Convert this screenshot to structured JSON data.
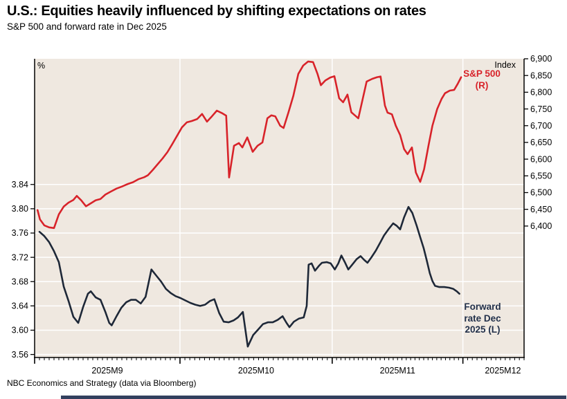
{
  "header": {
    "title": "U.S.: Equities heavily influenced by shifting expectations on rates",
    "subtitle": "S&P 500 and forward rate in Dec 2025"
  },
  "source": "NBC Economics and Strategy (data via Bloomberg)",
  "labels": {
    "left_axis_unit": "%",
    "right_axis_unit": "Index"
  },
  "legends": {
    "sp500": [
      "S&P 500",
      "(R)"
    ],
    "forward": [
      "Forward",
      "rate Dec",
      "2025 (L)"
    ]
  },
  "chart_data": {
    "type": "line",
    "title": "U.S.: Equities heavily influenced by shifting expectations on rates",
    "subtitle": "S&P 500 and forward rate in Dec 2025",
    "ylabel_left": "%",
    "ylabel_right": "Index",
    "grid": true,
    "plot_background": "#efe8e0",
    "gridline_color": "#ffffff",
    "ylim_left": [
      3.555,
      4.047
    ],
    "ylim_right": [
      6007,
      6900
    ],
    "left_ticks": [
      {
        "v": 3.84,
        "label": "3.84"
      },
      {
        "v": 3.8,
        "label": "3.80"
      },
      {
        "v": 3.76,
        "label": "3.76"
      },
      {
        "v": 3.72,
        "label": "3.72"
      },
      {
        "v": 3.68,
        "label": "3.68"
      },
      {
        "v": 3.64,
        "label": "3.64"
      },
      {
        "v": 3.6,
        "label": "3.60"
      },
      {
        "v": 3.56,
        "label": "3.56"
      }
    ],
    "right_ticks": [
      {
        "v": 6900,
        "label": "6,900"
      },
      {
        "v": 6850,
        "label": "6,850"
      },
      {
        "v": 6800,
        "label": "6,800"
      },
      {
        "v": 6750,
        "label": "6,750"
      },
      {
        "v": 6700,
        "label": "6,700"
      },
      {
        "v": 6650,
        "label": "6,650"
      },
      {
        "v": 6600,
        "label": "6,600"
      },
      {
        "v": 6550,
        "label": "6,550"
      },
      {
        "v": 6500,
        "label": "6,500"
      },
      {
        "v": 6450,
        "label": "6,450"
      },
      {
        "v": 6400,
        "label": "6,400"
      }
    ],
    "x_axis": {
      "unit": "days since 2025-09-01",
      "domain": [
        0,
        104
      ],
      "month_boundaries_day": [
        0,
        30,
        61,
        91
      ],
      "minor_tick_every_day": 1,
      "months": [
        {
          "label": "2025M9",
          "center_day": 15
        },
        {
          "label": "2025M10",
          "center_day": 45.5
        },
        {
          "label": "2025M11",
          "center_day": 76
        },
        {
          "label": "2025M12",
          "center_day": 99.5
        }
      ]
    },
    "series": [
      {
        "name": "S&P 500 (R)",
        "axis": "right",
        "color": "#d8232a",
        "width": 2.6,
        "points": [
          [
            0.6,
            6448
          ],
          [
            1.1,
            6420
          ],
          [
            2,
            6402
          ],
          [
            3,
            6396
          ],
          [
            4,
            6394
          ],
          [
            5,
            6435
          ],
          [
            6,
            6458
          ],
          [
            7,
            6470
          ],
          [
            8,
            6478
          ],
          [
            8.7,
            6490
          ],
          [
            9.6,
            6477
          ],
          [
            10.6,
            6459
          ],
          [
            11.6,
            6468
          ],
          [
            12.6,
            6477
          ],
          [
            13.6,
            6481
          ],
          [
            14.6,
            6494
          ],
          [
            15.7,
            6503
          ],
          [
            16.9,
            6512
          ],
          [
            18,
            6518
          ],
          [
            19.1,
            6525
          ],
          [
            20.3,
            6531
          ],
          [
            21.4,
            6540
          ],
          [
            22.6,
            6546
          ],
          [
            23.4,
            6552
          ],
          [
            24.4,
            6568
          ],
          [
            25.4,
            6585
          ],
          [
            26.4,
            6602
          ],
          [
            27.4,
            6621
          ],
          [
            28.4,
            6645
          ],
          [
            29.4,
            6670
          ],
          [
            30.4,
            6695
          ],
          [
            31.4,
            6710
          ],
          [
            32.4,
            6714
          ],
          [
            33.5,
            6720
          ],
          [
            34.5,
            6735
          ],
          [
            35.5,
            6712
          ],
          [
            36.5,
            6728
          ],
          [
            37.5,
            6745
          ],
          [
            38.5,
            6738
          ],
          [
            39.4,
            6730
          ],
          [
            40,
            6545
          ],
          [
            41,
            6640
          ],
          [
            42,
            6648
          ],
          [
            42.7,
            6635
          ],
          [
            43.7,
            6665
          ],
          [
            44.8,
            6622
          ],
          [
            45.8,
            6640
          ],
          [
            46.8,
            6650
          ],
          [
            47.8,
            6722
          ],
          [
            48.6,
            6731
          ],
          [
            49.4,
            6728
          ],
          [
            50.4,
            6700
          ],
          [
            51.1,
            6693
          ],
          [
            52.1,
            6740
          ],
          [
            53.1,
            6790
          ],
          [
            54.1,
            6855
          ],
          [
            55.1,
            6880
          ],
          [
            56.1,
            6892
          ],
          [
            57.1,
            6890
          ],
          [
            58,
            6855
          ],
          [
            58.7,
            6821
          ],
          [
            59.6,
            6835
          ],
          [
            60.6,
            6844
          ],
          [
            61.5,
            6848
          ],
          [
            62.6,
            6782
          ],
          [
            63.5,
            6770
          ],
          [
            64.5,
            6793
          ],
          [
            65.4,
            6740
          ],
          [
            66.2,
            6731
          ],
          [
            67,
            6722
          ],
          [
            68,
            6780
          ],
          [
            68.9,
            6832
          ],
          [
            70.2,
            6840
          ],
          [
            71.3,
            6845
          ],
          [
            72.1,
            6847
          ],
          [
            73.1,
            6760
          ],
          [
            73.7,
            6739
          ],
          [
            74.7,
            6734
          ],
          [
            75.6,
            6700
          ],
          [
            76.6,
            6672
          ],
          [
            77.5,
            6630
          ],
          [
            78.3,
            6615
          ],
          [
            79.3,
            6635
          ],
          [
            80.2,
            6560
          ],
          [
            81.2,
            6532
          ],
          [
            82.1,
            6570
          ],
          [
            83.1,
            6640
          ],
          [
            84,
            6700
          ],
          [
            85.1,
            6750
          ],
          [
            86.1,
            6780
          ],
          [
            86.9,
            6797
          ],
          [
            88,
            6805
          ],
          [
            89,
            6807
          ],
          [
            89.8,
            6825
          ],
          [
            90.6,
            6845
          ]
        ]
      },
      {
        "name": "Forward rate Dec 2025 (L)",
        "axis": "left",
        "color": "#1e2838",
        "width": 2.6,
        "points": [
          [
            1,
            3.762
          ],
          [
            2,
            3.755
          ],
          [
            3,
            3.745
          ],
          [
            4,
            3.73
          ],
          [
            5,
            3.712
          ],
          [
            6,
            3.672
          ],
          [
            7,
            3.648
          ],
          [
            8,
            3.622
          ],
          [
            9,
            3.612
          ],
          [
            10,
            3.638
          ],
          [
            11,
            3.66
          ],
          [
            11.6,
            3.664
          ],
          [
            12.6,
            3.654
          ],
          [
            13.6,
            3.65
          ],
          [
            14.6,
            3.63
          ],
          [
            15.4,
            3.612
          ],
          [
            15.9,
            3.608
          ],
          [
            16.9,
            3.623
          ],
          [
            17.9,
            3.637
          ],
          [
            18.9,
            3.646
          ],
          [
            19.9,
            3.65
          ],
          [
            20.9,
            3.65
          ],
          [
            21.9,
            3.644
          ],
          [
            22.9,
            3.655
          ],
          [
            23.7,
            3.685
          ],
          [
            24.1,
            3.7
          ],
          [
            25.1,
            3.69
          ],
          [
            26.1,
            3.68
          ],
          [
            27.1,
            3.668
          ],
          [
            28.1,
            3.661
          ],
          [
            29.1,
            3.656
          ],
          [
            30.1,
            3.653
          ],
          [
            31.1,
            3.649
          ],
          [
            32.1,
            3.645
          ],
          [
            33.1,
            3.642
          ],
          [
            34.1,
            3.64
          ],
          [
            35.1,
            3.642
          ],
          [
            36.1,
            3.648
          ],
          [
            37,
            3.651
          ],
          [
            38,
            3.628
          ],
          [
            38.9,
            3.614
          ],
          [
            39.9,
            3.613
          ],
          [
            40.9,
            3.616
          ],
          [
            41.8,
            3.621
          ],
          [
            42.8,
            3.63
          ],
          [
            43.8,
            3.573
          ],
          [
            44.9,
            3.592
          ],
          [
            45.9,
            3.601
          ],
          [
            46.9,
            3.61
          ],
          [
            47.9,
            3.613
          ],
          [
            48.9,
            3.613
          ],
          [
            49.9,
            3.617
          ],
          [
            50.9,
            3.623
          ],
          [
            51.7,
            3.612
          ],
          [
            52.3,
            3.605
          ],
          [
            53.2,
            3.614
          ],
          [
            54.2,
            3.619
          ],
          [
            55.2,
            3.621
          ],
          [
            55.8,
            3.64
          ],
          [
            56.2,
            3.708
          ],
          [
            56.8,
            3.71
          ],
          [
            57.5,
            3.698
          ],
          [
            58.3,
            3.706
          ],
          [
            58.9,
            3.711
          ],
          [
            59.9,
            3.712
          ],
          [
            60.7,
            3.71
          ],
          [
            61.6,
            3.7
          ],
          [
            62.4,
            3.71
          ],
          [
            63.1,
            3.723
          ],
          [
            63.9,
            3.712
          ],
          [
            64.7,
            3.7
          ],
          [
            65.6,
            3.708
          ],
          [
            66.6,
            3.717
          ],
          [
            67.5,
            3.722
          ],
          [
            68.3,
            3.716
          ],
          [
            69.1,
            3.711
          ],
          [
            70,
            3.72
          ],
          [
            71,
            3.731
          ],
          [
            72,
            3.744
          ],
          [
            72.9,
            3.756
          ],
          [
            73.9,
            3.766
          ],
          [
            75,
            3.776
          ],
          [
            75.8,
            3.772
          ],
          [
            76.6,
            3.766
          ],
          [
            77.5,
            3.786
          ],
          [
            78.5,
            3.803
          ],
          [
            79.4,
            3.793
          ],
          [
            80.4,
            3.772
          ],
          [
            81.2,
            3.753
          ],
          [
            82,
            3.735
          ],
          [
            82.7,
            3.715
          ],
          [
            83.4,
            3.694
          ],
          [
            84,
            3.681
          ],
          [
            84.6,
            3.673
          ],
          [
            85.6,
            3.671
          ],
          [
            86.7,
            3.671
          ],
          [
            87.8,
            3.67
          ],
          [
            88.8,
            3.668
          ],
          [
            89.6,
            3.664
          ],
          [
            90.2,
            3.66
          ]
        ]
      }
    ]
  }
}
